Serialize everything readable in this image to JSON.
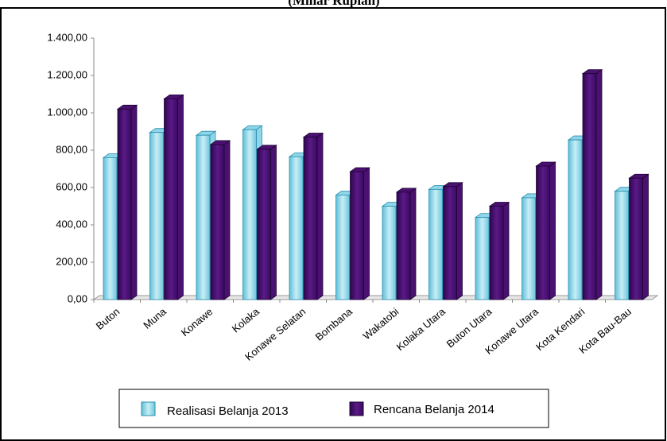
{
  "chart_data": {
    "type": "bar3d",
    "title": "(Miliar Rupiah)",
    "categories": [
      "Buton",
      "Muna",
      "Konawe",
      "Kolaka",
      "Konawe Selatan",
      "Bombana",
      "Wakatobi",
      "Kolaka Utara",
      "Buton Utara",
      "Konawe Utara",
      "Kota Kendari",
      "Kota Bau-Bau"
    ],
    "series": [
      {
        "name": "Realisasi Belanja 2013",
        "color": "#8fd6e8",
        "values": [
          760,
          895,
          880,
          910,
          765,
          560,
          500,
          590,
          440,
          545,
          855,
          580
        ]
      },
      {
        "name": "Rencana Belanja 2014",
        "color": "#4b1170",
        "values": [
          1020,
          1075,
          830,
          805,
          870,
          685,
          575,
          605,
          500,
          715,
          1210,
          650
        ]
      }
    ],
    "ylim": [
      0,
      1400
    ],
    "yticks": [
      {
        "value": 0,
        "label": "0,00"
      },
      {
        "value": 200,
        "label": "200,00"
      },
      {
        "value": 400,
        "label": "400,00"
      },
      {
        "value": 600,
        "label": "600,00"
      },
      {
        "value": 800,
        "label": "800,00"
      },
      {
        "value": 1000,
        "label": "1.000,00"
      },
      {
        "value": 1200,
        "label": "1.200,00"
      },
      {
        "value": 1400,
        "label": "1.400,00"
      }
    ]
  }
}
